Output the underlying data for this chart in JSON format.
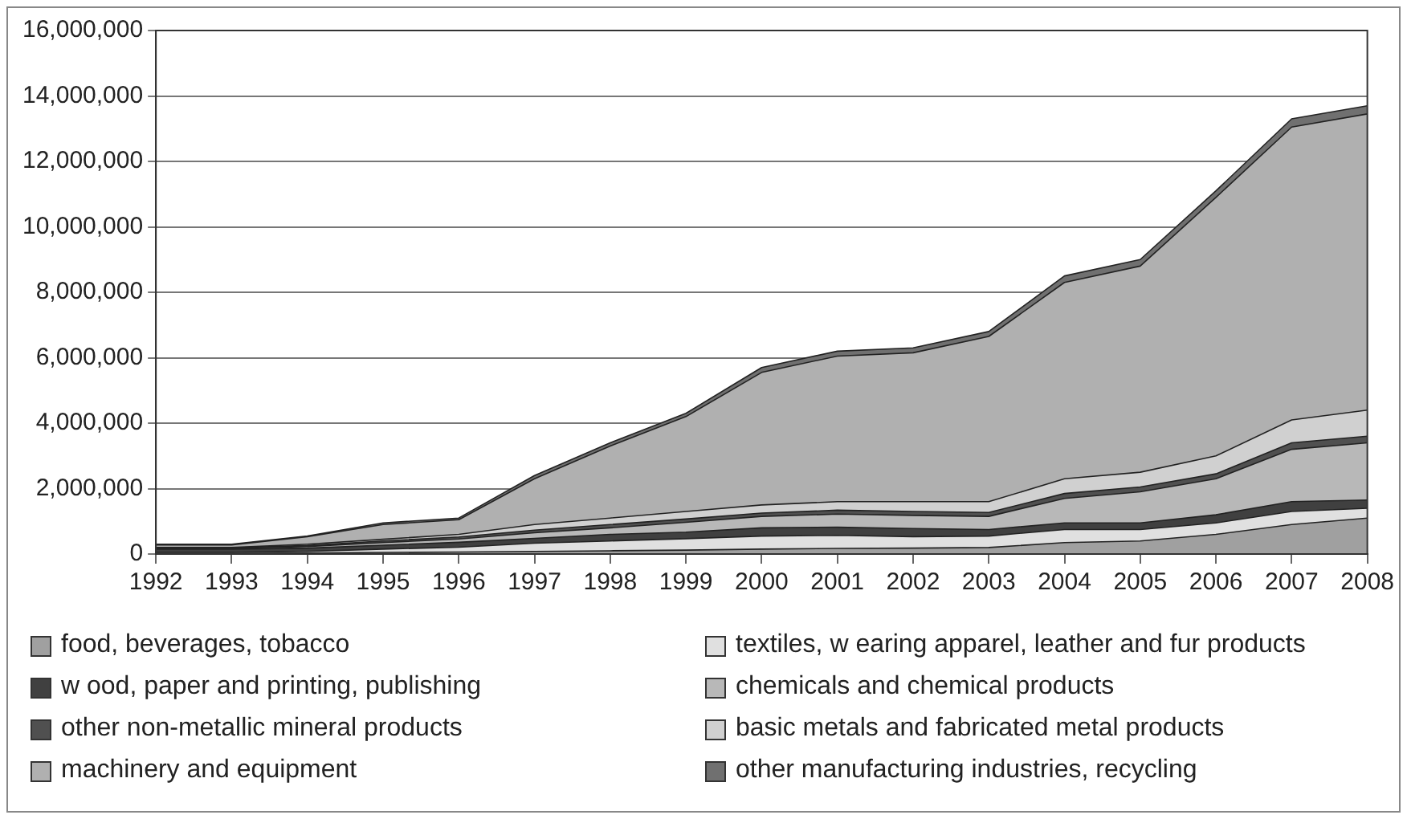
{
  "chart_data": {
    "type": "area",
    "stacked": true,
    "categories": [
      "1992",
      "1993",
      "1994",
      "1995",
      "1996",
      "1997",
      "1998",
      "1999",
      "2000",
      "2001",
      "2002",
      "2003",
      "2004",
      "2005",
      "2006",
      "2007",
      "2008"
    ],
    "series": [
      {
        "name": "food, beverages, tobacco",
        "color": "#a0a0a0",
        "values": [
          20000,
          20000,
          30000,
          50000,
          60000,
          80000,
          100000,
          120000,
          150000,
          170000,
          180000,
          200000,
          350000,
          400000,
          600000,
          900000,
          1100000
        ]
      },
      {
        "name": "textiles, w earing apparel, leather and fur products",
        "color": "#e0e0e0",
        "values": [
          30000,
          30000,
          50000,
          100000,
          150000,
          250000,
          300000,
          350000,
          400000,
          400000,
          350000,
          350000,
          400000,
          350000,
          350000,
          400000,
          300000
        ]
      },
      {
        "name": "w ood, paper and printing, publishing",
        "color": "#404040",
        "values": [
          100000,
          100000,
          100000,
          120000,
          150000,
          150000,
          200000,
          200000,
          250000,
          250000,
          250000,
          200000,
          200000,
          200000,
          250000,
          300000,
          250000
        ]
      },
      {
        "name": "chemicals and chemical products",
        "color": "#b8b8b8",
        "values": [
          20000,
          20000,
          50000,
          80000,
          100000,
          170000,
          200000,
          300000,
          350000,
          400000,
          400000,
          400000,
          750000,
          950000,
          1100000,
          1600000,
          1750000
        ]
      },
      {
        "name": "other non-metallic mineral products",
        "color": "#505050",
        "values": [
          20000,
          20000,
          30000,
          50000,
          60000,
          80000,
          100000,
          100000,
          100000,
          120000,
          120000,
          120000,
          150000,
          150000,
          150000,
          200000,
          200000
        ]
      },
      {
        "name": "basic metals and fabricated metal products",
        "color": "#d0d0d0",
        "values": [
          10000,
          10000,
          40000,
          50000,
          80000,
          170000,
          200000,
          230000,
          250000,
          260000,
          300000,
          330000,
          450000,
          450000,
          550000,
          700000,
          800000
        ]
      },
      {
        "name": "machinery and equipment",
        "color": "#b0b0b0",
        "values": [
          80000,
          80000,
          230000,
          450000,
          450000,
          1400000,
          2200000,
          2900000,
          4050000,
          4450000,
          4550000,
          5050000,
          6000000,
          6300000,
          7900000,
          8950000,
          9050000
        ]
      },
      {
        "name": "other manufacturing industries, recycling",
        "color": "#707070",
        "values": [
          20000,
          20000,
          20000,
          50000,
          50000,
          100000,
          100000,
          100000,
          150000,
          150000,
          150000,
          150000,
          200000,
          200000,
          200000,
          250000,
          250000
        ]
      }
    ],
    "ylim": [
      0,
      16000000
    ],
    "yticks": [
      {
        "value": 0,
        "label": "0"
      },
      {
        "value": 2000000,
        "label": "2,000,000"
      },
      {
        "value": 4000000,
        "label": "4,000,000"
      },
      {
        "value": 6000000,
        "label": "6,000,000"
      },
      {
        "value": 8000000,
        "label": "8,000,000"
      },
      {
        "value": 10000000,
        "label": "10,000,000"
      },
      {
        "value": 12000000,
        "label": "12,000,000"
      },
      {
        "value": 14000000,
        "label": "14,000,000"
      },
      {
        "value": 16000000,
        "label": "16,000,000"
      }
    ],
    "grid": "y",
    "legend": "bottom"
  }
}
